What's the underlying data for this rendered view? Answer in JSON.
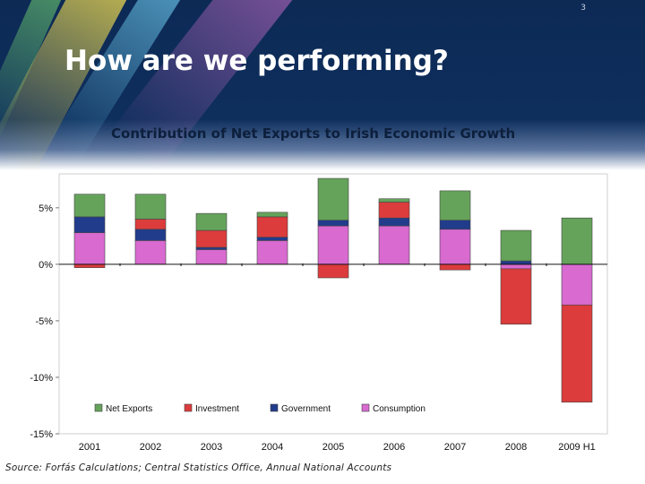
{
  "slide": {
    "page_number": "3",
    "title": "How are we performing?",
    "source": "Source: Forfás Calculations; Central Statistics Office, Annual National Accounts"
  },
  "chart_data": {
    "type": "bar",
    "stacked": true,
    "title": "Contribution of Net Exports to Irish Economic Growth",
    "xlabel": "",
    "ylabel": "",
    "ylim": [
      -15,
      8
    ],
    "yticks": [
      5,
      0,
      -5,
      -10,
      -15
    ],
    "ytick_labels": [
      "5%",
      "0%",
      "-5%",
      "-10%",
      "-15%"
    ],
    "categories": [
      "2001",
      "2002",
      "2003",
      "2004",
      "2005",
      "2006",
      "2007",
      "2008",
      "2009 H1"
    ],
    "legend_position": "bottom",
    "colors": {
      "Net Exports": "#65a35b",
      "Investment": "#dc3c3c",
      "Government": "#223c8c",
      "Consumption": "#d86ad0"
    },
    "series": [
      {
        "name": "Net Exports",
        "values": [
          2.0,
          2.2,
          1.5,
          0.4,
          3.7,
          0.3,
          2.6,
          2.7,
          4.1
        ]
      },
      {
        "name": "Investment",
        "values": [
          -0.3,
          0.9,
          1.5,
          1.8,
          -1.2,
          1.4,
          -0.5,
          -4.9,
          -8.6
        ]
      },
      {
        "name": "Government",
        "values": [
          1.4,
          1.0,
          0.2,
          0.3,
          0.5,
          0.7,
          0.8,
          0.3,
          0.0
        ]
      },
      {
        "name": "Consumption",
        "values": [
          2.8,
          2.1,
          1.3,
          2.1,
          3.4,
          3.4,
          3.1,
          -0.4,
          -3.6
        ]
      }
    ]
  }
}
